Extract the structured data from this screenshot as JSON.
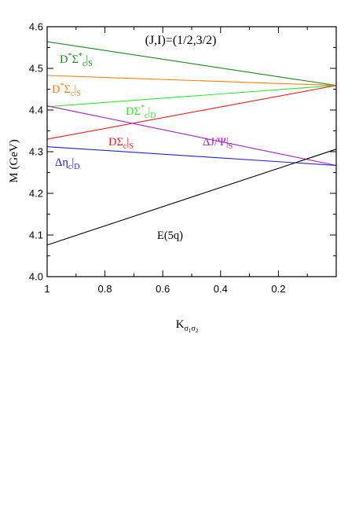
{
  "chart_data": {
    "type": "line",
    "title": "(J,I)=(1/2,3/2)",
    "xlabel": "K",
    "xlabel_subscript": "σ1σ2",
    "ylabel": "M (GeV)",
    "xlim": [
      1.0,
      0.0
    ],
    "ylim": [
      4.0,
      4.6
    ],
    "x_ticks": [
      1,
      0.8,
      0.6,
      0.4,
      0.2
    ],
    "x_tick_labels": [
      "1",
      "0.8",
      "0.6",
      "0.4",
      "0.2"
    ],
    "y_ticks": [
      4.0,
      4.1,
      4.2,
      4.3,
      4.4,
      4.5,
      4.6
    ],
    "y_tick_labels": [
      "4.0",
      "4.1",
      "4.2",
      "4.3",
      "4.4",
      "4.5",
      "4.6"
    ],
    "grid": false,
    "legend": "none",
    "series": [
      {
        "name": "D*Σ*c|S",
        "color": "#1a8a1a",
        "x": [
          1.0,
          0.0
        ],
        "y": [
          4.564,
          4.459
        ],
        "label": {
          "main": "D",
          "sup1": "*",
          "mid": "Σ",
          "sup2": "*",
          "sub": "c",
          "bar": "|",
          "sub2": "S"
        }
      },
      {
        "name": "D*Σc|S",
        "color": "#ff7f0e",
        "x": [
          1.0,
          0.0
        ],
        "y": [
          4.483,
          4.459
        ],
        "label": {
          "main": "D",
          "sup1": "*",
          "mid": "Σ",
          "sub": "c",
          "bar": "|",
          "sub2": "S"
        }
      },
      {
        "name": "DΣ*c|D",
        "color": "#33e533",
        "x": [
          1.0,
          0.0
        ],
        "y": [
          4.408,
          4.459
        ],
        "label": {
          "main": "DΣ",
          "sup": "*",
          "sub": "c",
          "bar": "|",
          "sub2": "D"
        }
      },
      {
        "name": "DΣc|S",
        "color": "#ee1c1c",
        "x": [
          1.0,
          0.0
        ],
        "y": [
          4.33,
          4.459
        ],
        "label": {
          "main": "DΣ",
          "sub": "c",
          "bar": "|",
          "sub2": "S"
        }
      },
      {
        "name": "ΔJ/Ψ|S",
        "color": "#a020c0",
        "x": [
          1.0,
          0.0
        ],
        "y": [
          4.41,
          4.267
        ],
        "label": {
          "main": "ΔJ/Ψ",
          "bar": "|",
          "sub2": "S"
        }
      },
      {
        "name": "Δηc|D",
        "color": "#2020e0",
        "x": [
          1.0,
          0.0
        ],
        "y": [
          4.312,
          4.267
        ],
        "label": {
          "main": "Δη",
          "sub": "c",
          "bar": "|",
          "sub2": "D"
        }
      },
      {
        "name": "E(5q)",
        "color": "#000000",
        "x": [
          1.0,
          0.0
        ],
        "y": [
          4.076,
          4.306
        ],
        "label": {
          "main": "E(5q)"
        }
      }
    ]
  }
}
